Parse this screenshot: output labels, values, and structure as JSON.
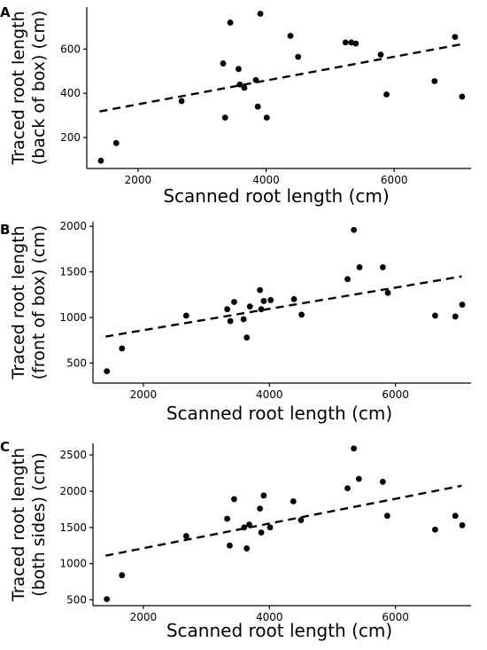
{
  "chart_data": [
    {
      "type": "scatter",
      "panel": "A",
      "xlabel": "Scanned root length (cm)",
      "ylabel_lines": [
        "Traced root length",
        "(back of box) (cm)"
      ],
      "xlim": [
        1200,
        7200
      ],
      "ylim": [
        60,
        790
      ],
      "x_ticks": [
        2000,
        4000,
        6000
      ],
      "y_ticks": [
        200,
        400,
        600
      ],
      "points": [
        [
          1420,
          95
        ],
        [
          1660,
          175
        ],
        [
          2680,
          365
        ],
        [
          3330,
          535
        ],
        [
          3360,
          290
        ],
        [
          3440,
          720
        ],
        [
          3570,
          510
        ],
        [
          3590,
          440
        ],
        [
          3660,
          425
        ],
        [
          3840,
          460
        ],
        [
          3870,
          340
        ],
        [
          3910,
          760
        ],
        [
          4010,
          290
        ],
        [
          4380,
          660
        ],
        [
          4500,
          565
        ],
        [
          5240,
          630
        ],
        [
          5330,
          630
        ],
        [
          5400,
          625
        ],
        [
          5790,
          575
        ],
        [
          5880,
          395
        ],
        [
          6630,
          455
        ],
        [
          6950,
          655
        ],
        [
          7060,
          385
        ]
      ],
      "trend": {
        "x": [
          1400,
          7050
        ],
        "y": [
          318,
          622
        ]
      }
    },
    {
      "type": "scatter",
      "panel": "B",
      "xlabel": "Scanned root length (cm)",
      "ylabel_lines": [
        "Traced root length",
        "(front of box) (cm)"
      ],
      "xlim": [
        1200,
        7200
      ],
      "ylim": [
        280,
        2050
      ],
      "x_ticks": [
        2000,
        4000,
        6000
      ],
      "y_ticks": [
        500,
        1000,
        1500,
        2000
      ],
      "points": [
        [
          1420,
          410
        ],
        [
          1660,
          660
        ],
        [
          2680,
          1020
        ],
        [
          3330,
          1090
        ],
        [
          3380,
          960
        ],
        [
          3440,
          1170
        ],
        [
          3590,
          980
        ],
        [
          3640,
          780
        ],
        [
          3690,
          1120
        ],
        [
          3850,
          1300
        ],
        [
          3870,
          1090
        ],
        [
          3910,
          1180
        ],
        [
          4020,
          1190
        ],
        [
          4390,
          1200
        ],
        [
          4510,
          1030
        ],
        [
          5240,
          1420
        ],
        [
          5340,
          1960
        ],
        [
          5430,
          1550
        ],
        [
          5800,
          1550
        ],
        [
          5880,
          1270
        ],
        [
          6630,
          1020
        ],
        [
          6950,
          1010
        ],
        [
          7060,
          1140
        ]
      ],
      "trend": {
        "x": [
          1400,
          7050
        ],
        "y": [
          790,
          1450
        ]
      }
    },
    {
      "type": "scatter",
      "panel": "C",
      "xlabel": "Scanned root length (cm)",
      "ylabel_lines": [
        "Traced root length",
        "(both sides) (cm)"
      ],
      "xlim": [
        1200,
        7200
      ],
      "ylim": [
        420,
        2660
      ],
      "x_ticks": [
        2000,
        4000,
        6000
      ],
      "y_ticks": [
        500,
        1000,
        1500,
        2000,
        2500
      ],
      "points": [
        [
          1420,
          510
        ],
        [
          1660,
          840
        ],
        [
          2680,
          1380
        ],
        [
          3330,
          1620
        ],
        [
          3370,
          1250
        ],
        [
          3440,
          1890
        ],
        [
          3600,
          1500
        ],
        [
          3640,
          1210
        ],
        [
          3680,
          1540
        ],
        [
          3850,
          1760
        ],
        [
          3870,
          1430
        ],
        [
          3910,
          1940
        ],
        [
          4010,
          1500
        ],
        [
          4380,
          1860
        ],
        [
          4500,
          1600
        ],
        [
          5240,
          2040
        ],
        [
          5340,
          2590
        ],
        [
          5420,
          2170
        ],
        [
          5800,
          2130
        ],
        [
          5870,
          1660
        ],
        [
          6630,
          1470
        ],
        [
          6950,
          1660
        ],
        [
          7060,
          1530
        ]
      ],
      "trend": {
        "x": [
          1400,
          7050
        ],
        "y": [
          1110,
          2075
        ]
      }
    }
  ]
}
